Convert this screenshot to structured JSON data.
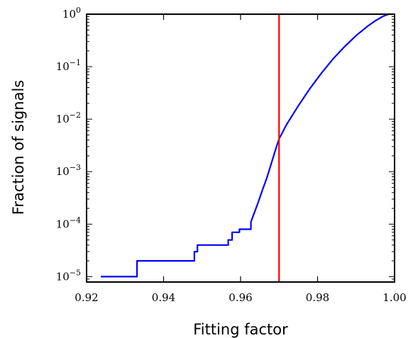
{
  "chart_data": {
    "type": "line",
    "title": "",
    "xlabel": "Fitting factor",
    "ylabel": "Fraction of signals",
    "xlim": [
      0.92,
      1.0
    ],
    "ylim": [
      7.9e-06,
      1.0
    ],
    "yscale": "log",
    "grid": false,
    "x_ticks": [
      0.92,
      0.94,
      0.96,
      0.98,
      1.0
    ],
    "x_tick_labels": [
      "0.92",
      "0.94",
      "0.96",
      "0.98",
      "1.00"
    ],
    "y_ticks": [
      {
        "value": 1,
        "base": "10",
        "exp": "0"
      },
      {
        "value": 0.1,
        "base": "10",
        "exp": "−1"
      },
      {
        "value": 0.01,
        "base": "10",
        "exp": "−2"
      },
      {
        "value": 0.001,
        "base": "10",
        "exp": "−3"
      },
      {
        "value": 0.0001,
        "base": "10",
        "exp": "−4"
      },
      {
        "value": 1e-05,
        "base": "10",
        "exp": "−5"
      }
    ],
    "series": [
      {
        "color": "#0000ff",
        "x": [
          0.9237,
          0.9331,
          0.9331,
          0.948,
          0.948,
          0.9488,
          0.9488,
          0.9568,
          0.9568,
          0.9578,
          0.9578,
          0.9597,
          0.9597,
          0.9627,
          0.9627,
          0.9635,
          0.9645,
          0.9657,
          0.9668,
          0.9675,
          0.969,
          0.97,
          0.972,
          0.975,
          0.978,
          0.981,
          0.984,
          0.987,
          0.99,
          0.993,
          0.995,
          0.997,
          0.9985
        ],
        "y": [
          1e-05,
          1e-05,
          2e-05,
          2e-05,
          3e-05,
          3e-05,
          4e-05,
          4e-05,
          5e-05,
          5e-05,
          7e-05,
          7e-05,
          8e-05,
          8e-05,
          0.00011,
          0.00016,
          0.00025,
          0.00045,
          0.00075,
          0.0011,
          0.0025,
          0.0042,
          0.008,
          0.018,
          0.038,
          0.075,
          0.14,
          0.24,
          0.39,
          0.59,
          0.75,
          0.91,
          1.0
        ]
      }
    ],
    "vline": {
      "x": 0.97,
      "color": "#ff0000"
    }
  }
}
